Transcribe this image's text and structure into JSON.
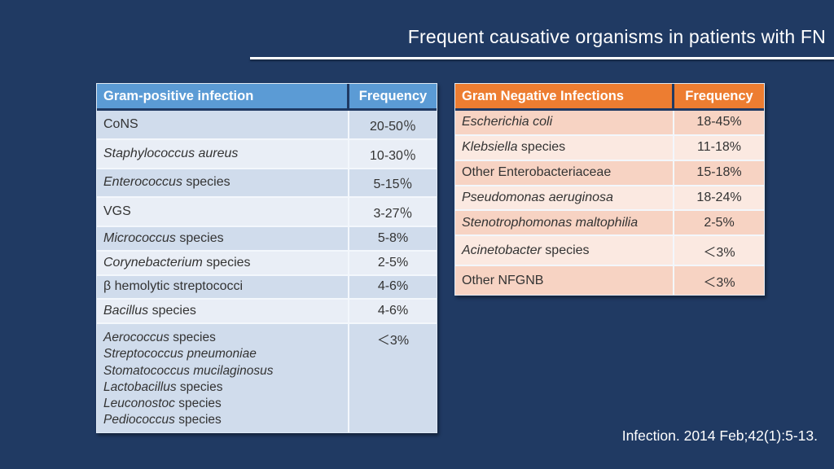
{
  "slide": {
    "title": "Frequent causative organisms in patients with FN",
    "citation": "Infection. 2014 Feb;42(1):5-13.",
    "background_color": "#203a63",
    "accent_line_color": "#ffffff"
  },
  "tables": [
    {
      "id": "gram-positive",
      "header": {
        "organism": "Gram-positive infection",
        "frequency": "Frequency"
      },
      "colors": {
        "header_bg": "#5b9bd5",
        "row_dark": "#d0dcec",
        "row_light": "#e9eef6"
      },
      "rows": [
        {
          "lines": [
            [
              {
                "t": "CoNS",
                "i": false
              }
            ]
          ],
          "frequency": "20-50％"
        },
        {
          "lines": [
            [
              {
                "t": "Staphylococcus aureus",
                "i": true
              }
            ]
          ],
          "frequency": "10-30％"
        },
        {
          "lines": [
            [
              {
                "t": "Enterococcus",
                "i": true
              },
              {
                "t": " species",
                "i": false
              }
            ]
          ],
          "frequency": "5-15％"
        },
        {
          "lines": [
            [
              {
                "t": "VGS",
                "i": false
              }
            ]
          ],
          "frequency": "3-27％"
        },
        {
          "lines": [
            [
              {
                "t": "Micrococcus",
                "i": true
              },
              {
                "t": " species",
                "i": false
              }
            ]
          ],
          "frequency": "5-8%"
        },
        {
          "lines": [
            [
              {
                "t": "Corynebacterium",
                "i": true
              },
              {
                "t": " species",
                "i": false
              }
            ]
          ],
          "frequency": "2-5%"
        },
        {
          "lines": [
            [
              {
                "t": "β hemolytic streptococci",
                "i": false
              }
            ]
          ],
          "frequency": "4-6%"
        },
        {
          "lines": [
            [
              {
                "t": "Bacillus",
                "i": true
              },
              {
                "t": " species",
                "i": false
              }
            ]
          ],
          "frequency": "4-6%"
        },
        {
          "tall": true,
          "lines": [
            [
              {
                "t": "Aerococcus",
                "i": true
              },
              {
                "t": " species",
                "i": false
              }
            ],
            [
              {
                "t": "Streptococcus pneumoniae",
                "i": true
              }
            ],
            [
              {
                "t": "Stomatococcus mucilaginosus",
                "i": true
              }
            ],
            [
              {
                "t": "Lactobacillus",
                "i": true
              },
              {
                "t": " species",
                "i": false
              }
            ],
            [
              {
                "t": "Leuconostoc",
                "i": true
              },
              {
                "t": " species",
                "i": false
              }
            ],
            [
              {
                "t": "Pediococcus",
                "i": true
              },
              {
                "t": " species",
                "i": false
              }
            ]
          ],
          "frequency": "＜3%"
        }
      ]
    },
    {
      "id": "gram-negative",
      "header": {
        "organism": "Gram Negative Infections",
        "frequency": "Frequency"
      },
      "colors": {
        "header_bg": "#ed7d31",
        "row_dark": "#f7d3c3",
        "row_light": "#fbe9e1"
      },
      "rows": [
        {
          "lines": [
            [
              {
                "t": "Escherichia coli",
                "i": true
              }
            ]
          ],
          "frequency": "18-45%"
        },
        {
          "lines": [
            [
              {
                "t": "Klebsiella",
                "i": true
              },
              {
                "t": " species",
                "i": false
              }
            ]
          ],
          "frequency": "11-18%"
        },
        {
          "lines": [
            [
              {
                "t": "Other Enterobacteriaceae",
                "i": false
              }
            ]
          ],
          "frequency": "15-18%"
        },
        {
          "lines": [
            [
              {
                "t": "Pseudomonas aeruginosa",
                "i": true
              }
            ]
          ],
          "frequency": "18-24%"
        },
        {
          "lines": [
            [
              {
                "t": "Stenotrophomonas maltophilia",
                "i": true
              }
            ]
          ],
          "frequency": "2-5%"
        },
        {
          "lines": [
            [
              {
                "t": "Acinetobacter",
                "i": true
              },
              {
                "t": " species",
                "i": false
              }
            ]
          ],
          "frequency": "＜3%"
        },
        {
          "lines": [
            [
              {
                "t": "Other NFGNB",
                "i": false
              }
            ]
          ],
          "frequency": "＜3%"
        }
      ]
    }
  ]
}
